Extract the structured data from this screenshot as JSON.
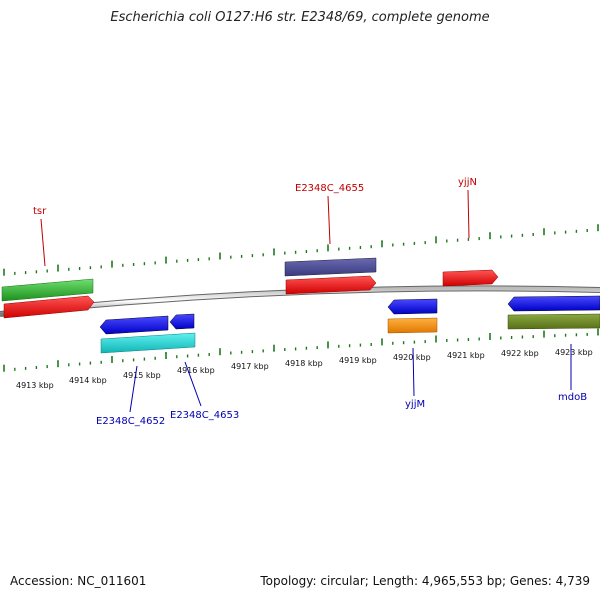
{
  "title": "Escherichia coli O127:H6 str. E2348/69, complete genome",
  "footer": {
    "accession": "Accession: NC_011601",
    "summary": "Topology: circular; Length: 4,965,553 bp; Genes: 4,739"
  },
  "scale_labels": [
    "4913 kbp",
    "4914 kbp",
    "4915 kbp",
    "4916 kbp",
    "4917 kbp",
    "4918 kbp",
    "4919 kbp",
    "4920 kbp",
    "4921 kbp",
    "4922 kbp",
    "4923 kbp"
  ],
  "gene_labels": {
    "tsr": "tsr",
    "e4655": "E2348C_4655",
    "yjjN": "yjjN",
    "e4652": "E2348C_4652",
    "e4653": "E2348C_4653",
    "yjjM": "yjjM",
    "mdoB": "mdoB"
  },
  "colors": {
    "forward_label": "#c00000",
    "reverse_label": "#0000b0",
    "tick": "#1f7a1f",
    "backbone": "#888888"
  }
}
